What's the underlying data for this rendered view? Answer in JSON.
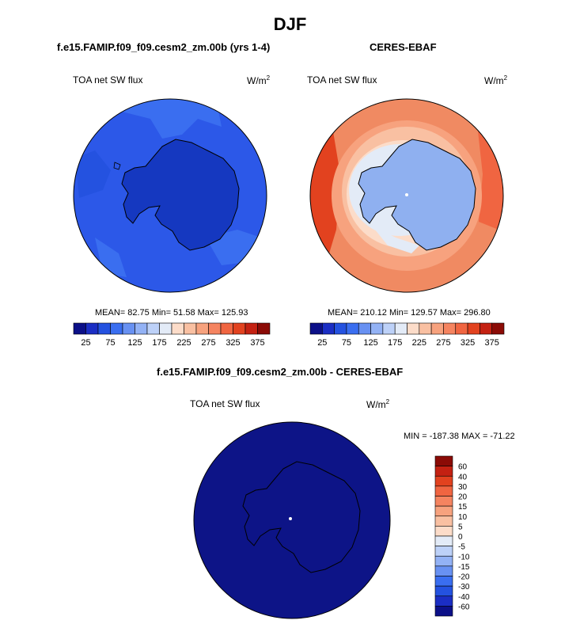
{
  "figure": {
    "season_title": "DJF",
    "model_case_title": "f.e15.FAMIP.f09_f09.cesm2_zm.00b (yrs 1-4)",
    "obs_title": "CERES-EBAF",
    "diff_title": "f.e15.FAMIP.f09_f09.cesm2_zm.00b - CERES-EBAF"
  },
  "panels": {
    "model": {
      "variable": "TOA net SW flux",
      "units_base": "W/m",
      "units_exp": "2",
      "stats": "MEAN= 82.75  Min= 51.58  Max= 125.93",
      "mean": 82.75,
      "min": 51.58,
      "max": 125.93
    },
    "obs": {
      "variable": "TOA net SW flux",
      "units_base": "W/m",
      "units_exp": "2",
      "stats": "MEAN= 210.12  Min= 129.57  Max= 296.80",
      "mean": 210.12,
      "min": 129.57,
      "max": 296.8
    },
    "diff": {
      "variable": "TOA net SW flux",
      "units_base": "W/m",
      "units_exp": "2",
      "stats": "MIN = -187.38 MAX = -71.22",
      "min": -187.38,
      "max": -71.22
    }
  },
  "colorbars": {
    "main": {
      "labels": [
        "25",
        "75",
        "125",
        "175",
        "225",
        "275",
        "325",
        "375"
      ],
      "colors": [
        "#0c1088",
        "#1b2ec4",
        "#2452e0",
        "#3a6ef0",
        "#6891f2",
        "#93b2f5",
        "#bdd1f8",
        "#e3ebf7",
        "#fcdcc9",
        "#f9c0a2",
        "#f7a27e",
        "#f58460",
        "#f06541",
        "#e2421f",
        "#c42112",
        "#8b0b06"
      ]
    },
    "diff": {
      "labels": [
        "60",
        "40",
        "30",
        "20",
        "15",
        "10",
        "5",
        "0",
        "-5",
        "-10",
        "-15",
        "-20",
        "-30",
        "-40",
        "-60"
      ],
      "colors": [
        "#8b0b06",
        "#c42112",
        "#e2421f",
        "#f06541",
        "#f58460",
        "#f7a27e",
        "#f9c0a2",
        "#fcdcc9",
        "#e3ebf7",
        "#bdd1f8",
        "#93b2f5",
        "#6891f2",
        "#3a6ef0",
        "#2452e0",
        "#1b2ec4",
        "#0c1088"
      ]
    }
  },
  "colors": {
    "model_ocean": "#2c58e8",
    "model_land": "#1538c0",
    "obs_ocean": "#f08a62",
    "obs_land": "#8fb0f0",
    "diff_fill": "#0d1487"
  }
}
